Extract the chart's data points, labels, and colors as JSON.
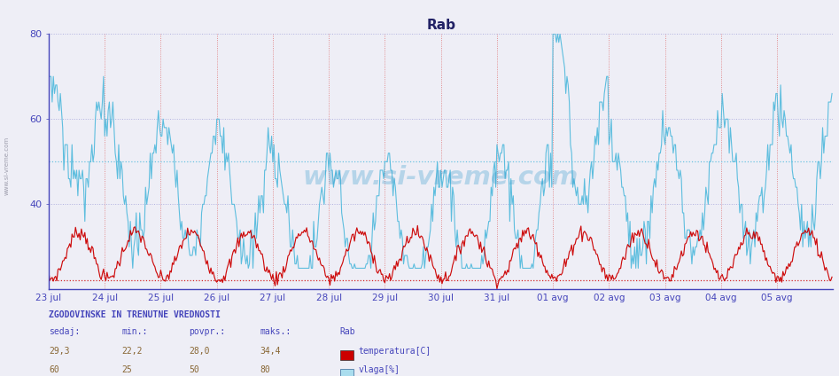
{
  "title": "Rab",
  "background_color": "#eeeef6",
  "plot_bg_color": "#eeeef6",
  "temp_color": "#cc0000",
  "vlaga_color": "#55bbdd",
  "temp_avg": 28.0,
  "temp_min_hline": 22.2,
  "vlaga_avg": 50,
  "x_labels": [
    "23 jul",
    "24 jul",
    "25 jul",
    "26 jul",
    "27 jul",
    "28 jul",
    "29 jul",
    "30 jul",
    "31 jul",
    "01 avg",
    "02 avg",
    "03 avg",
    "04 avg",
    "05 avg"
  ],
  "n_days": 14,
  "n_per_day": 48,
  "axis_color": "#4444bb",
  "grid_color_v": "#dd6666",
  "grid_color_h": "#aaaadd",
  "watermark": "www.si-vreme.com",
  "watermark_color": "#3399cc",
  "side_label": "www.si-vreme.com",
  "info_header": "ZGODOVINSKE IN TRENUTNE VREDNOSTI",
  "col_sedaj": "sedaj:",
  "col_min": "min.:",
  "col_povpr": "povpr.:",
  "col_maks": "maks.:",
  "col_station": "Rab",
  "temp_current": "29,3",
  "temp_min": "22,2",
  "temp_povpr": "28,0",
  "temp_maks": "34,4",
  "vlaga_current": "60",
  "vlaga_min": "25",
  "vlaga_povpr": "50",
  "vlaga_maks": "80",
  "label_temp": "temperatura[C]",
  "label_vlaga": "vlaga[%]",
  "ylim": [
    20,
    80
  ],
  "yticks": [
    40,
    60,
    80
  ],
  "temp_rect_color": "#cc0000",
  "vlaga_rect_color": "#aaddee",
  "vlaga_rect_edge": "#336699"
}
